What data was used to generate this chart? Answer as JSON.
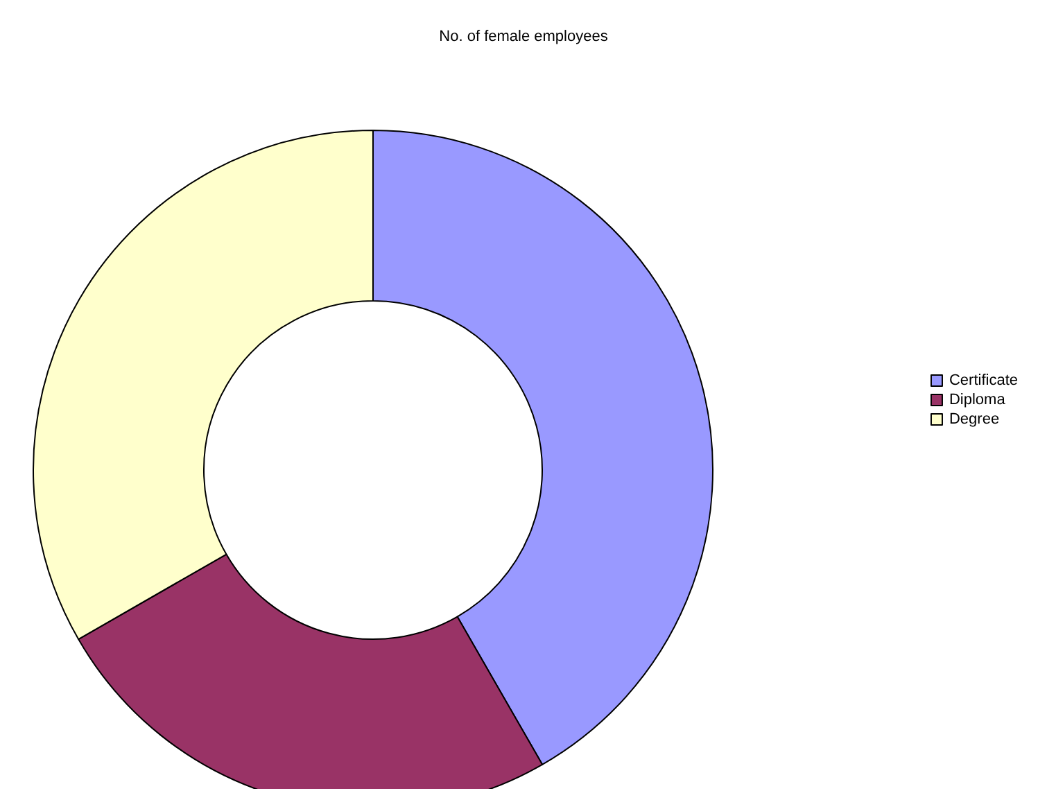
{
  "chart_data": {
    "type": "donut",
    "title": "No. of female employees",
    "categories": [
      "Certificate",
      "Diploma",
      "Degree"
    ],
    "values": [
      41.7,
      25,
      33.3
    ],
    "colors": [
      "#9999ff",
      "#993366",
      "#ffffcc"
    ],
    "legend": "right"
  }
}
